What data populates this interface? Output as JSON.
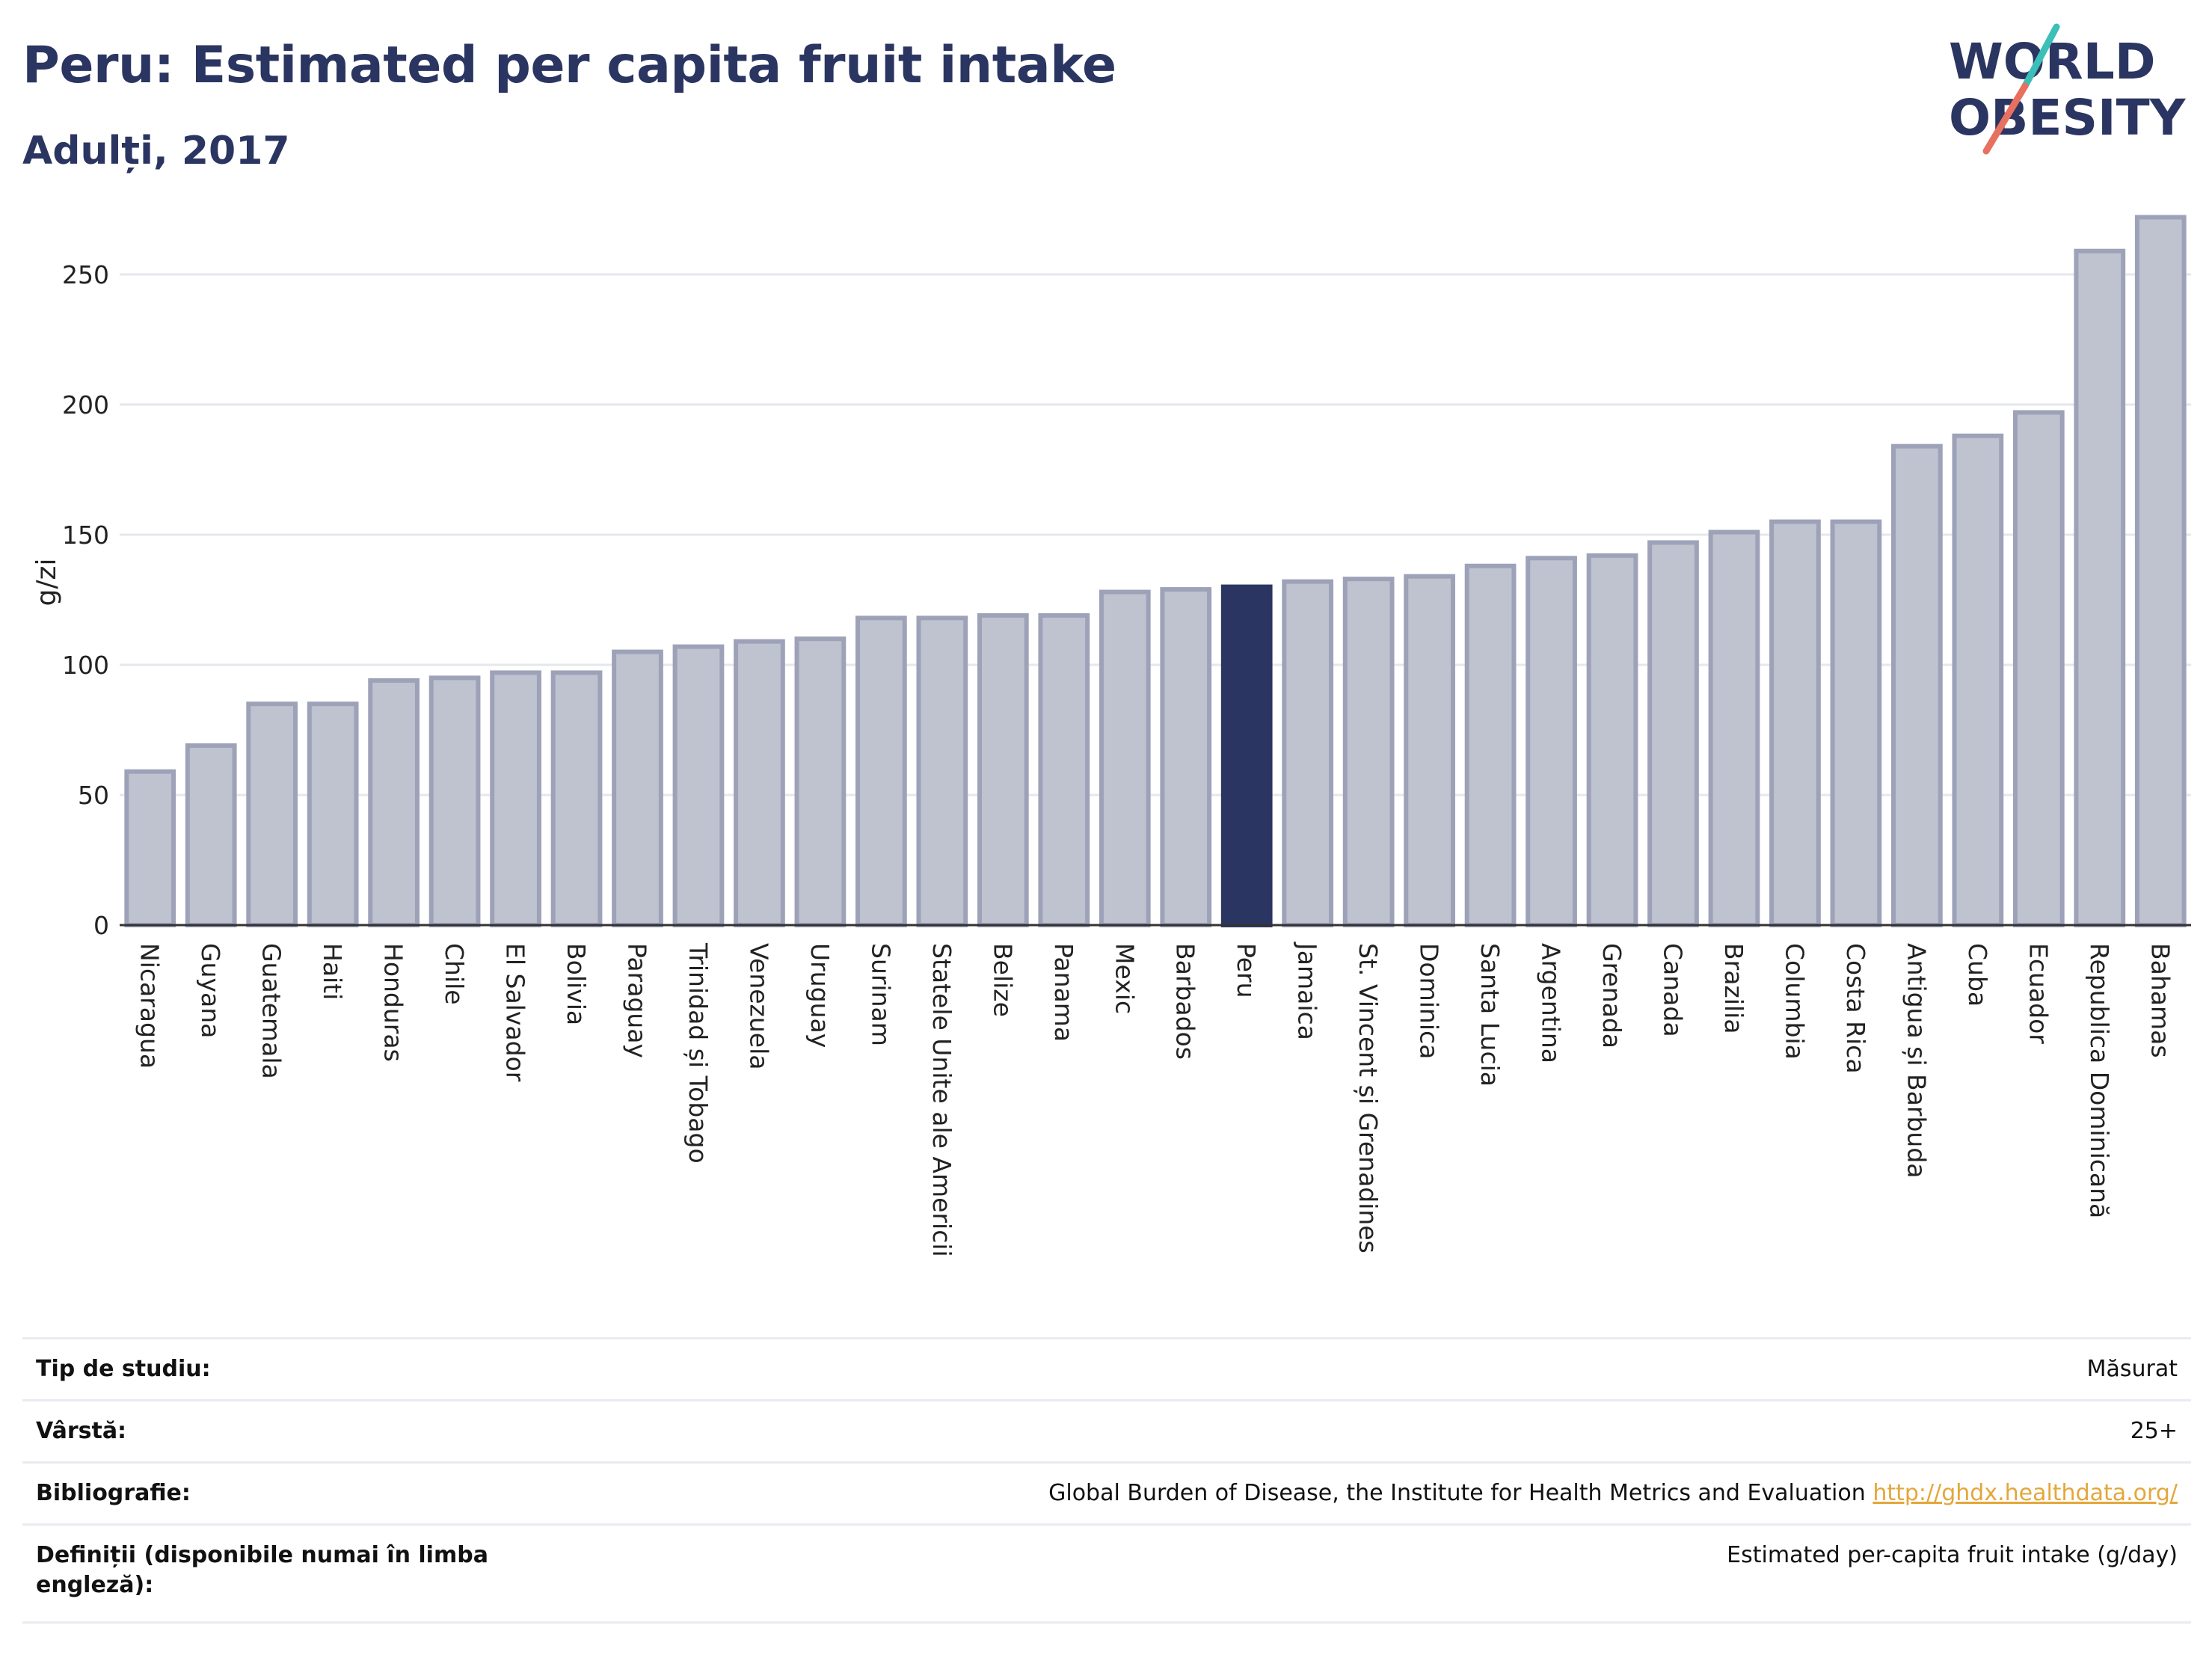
{
  "header": {
    "title": "Peru: Estimated per capita fruit intake",
    "subtitle": "Adulți, 2017"
  },
  "logo": {
    "line1": "WORLD",
    "line2": "OBESITY",
    "icon": "world-obesity-logo"
  },
  "colors": {
    "bar": "#bfc2cf",
    "bar_border": "#9da2b8",
    "highlight": "#2b3561",
    "grid": "#e6e7ec",
    "accent_teal": "#3bbfb8",
    "accent_coral": "#e8705f"
  },
  "chart_data": {
    "type": "bar",
    "ylabel": "g/zi",
    "ylim": [
      0,
      275
    ],
    "yticks": [
      0,
      50,
      100,
      150,
      200,
      250
    ],
    "grid": true,
    "highlight": "Peru",
    "categories": [
      "Nicaragua",
      "Guyana",
      "Guatemala",
      "Haiti",
      "Honduras",
      "Chile",
      "El Salvador",
      "Bolivia",
      "Paraguay",
      "Trinidad și Tobago",
      "Venezuela",
      "Uruguay",
      "Surinam",
      "Statele Unite ale Americii",
      "Belize",
      "Panama",
      "Mexic",
      "Barbados",
      "Peru",
      "Jamaica",
      "St. Vincent și Grenadines",
      "Dominica",
      "Santa Lucia",
      "Argentina",
      "Grenada",
      "Canada",
      "Brazilia",
      "Columbia",
      "Costa Rica",
      "Antigua și Barbuda",
      "Cuba",
      "Ecuador",
      "Republica Dominicană",
      "Bahamas"
    ],
    "values": [
      59,
      69,
      85,
      85,
      94,
      95,
      97,
      97,
      105,
      107,
      109,
      110,
      118,
      118,
      119,
      119,
      128,
      129,
      130,
      132,
      133,
      134,
      138,
      141,
      142,
      147,
      151,
      155,
      155,
      184,
      188,
      197,
      259,
      272
    ]
  },
  "info": [
    {
      "label": "Tip de studiu:",
      "value": "Măsurat"
    },
    {
      "label": "Vârstă:",
      "value": "25+"
    },
    {
      "label": "Bibliografie:",
      "value": "Global Burden of Disease, the Institute for Health Metrics and Evaluation",
      "link": "http://ghdx.healthdata.org/"
    },
    {
      "label": "Definiții (disponibile numai în limba engleză):",
      "value": "Estimated per-capita fruit intake (g/day)"
    }
  ]
}
